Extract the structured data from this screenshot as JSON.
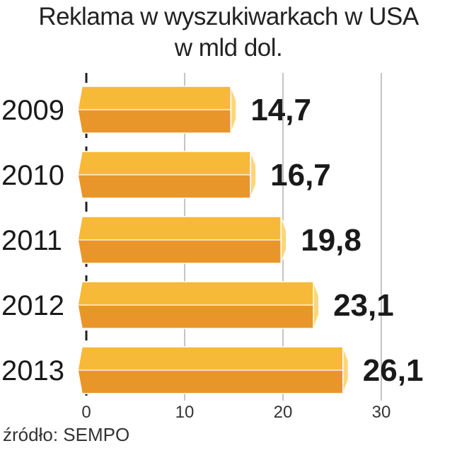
{
  "chart_data": {
    "type": "bar",
    "orientation": "horizontal",
    "title": "Reklama w wyszukiwarkach w USA",
    "subtitle": "w mld dol.",
    "categories": [
      "2009",
      "2010",
      "2011",
      "2012",
      "2013"
    ],
    "values": [
      14.7,
      16.7,
      19.8,
      23.1,
      26.1
    ],
    "value_labels": [
      "14,7",
      "16,7",
      "19,8",
      "23,1",
      "26,1"
    ],
    "xlim": [
      0,
      30
    ],
    "xticks": [
      "0",
      "10",
      "20",
      "30"
    ],
    "grid": true,
    "colors": {
      "bar_top": "#f7b938",
      "bar_bottom": "#e8962a",
      "bar_cap": "#fbd77a",
      "bar_edge": "#ffffff",
      "grid": "#8a8a8a",
      "axis": "#222222",
      "label": "#1a1a1a"
    }
  },
  "source": "źródło: SEMPO"
}
